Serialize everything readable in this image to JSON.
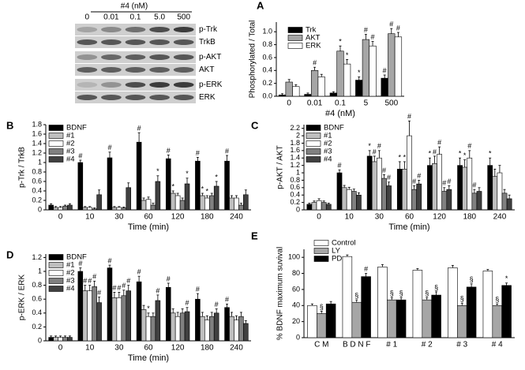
{
  "blot": {
    "title": "#4 (nM)",
    "lanes": [
      "0",
      "0.01",
      "0.1",
      "5.0",
      "500"
    ],
    "rows": [
      "p-Trk",
      "TrkB",
      "p-AKT",
      "AKT",
      "p-ERK",
      "ERK"
    ]
  },
  "chart_data": [
    {
      "type": "bar",
      "panel": "A",
      "x_label": "#4 (nM)",
      "y_label": "Phosphorylated / Total",
      "categories": [
        "0",
        "0.01",
        "0.1",
        "5",
        "500"
      ],
      "ylim": [
        0,
        1.15
      ],
      "yticks": [
        {
          "value": 0,
          "label": "0.0"
        },
        0.2,
        0.4,
        0.6,
        0.8,
        {
          "value": 1,
          "label": "1.0"
        }
      ],
      "legend": "top-left",
      "series": [
        {
          "name": "Trk",
          "color": "#000000",
          "values": [
            0.02,
            0.03,
            0.05,
            0.25,
            0.28
          ],
          "errors": [
            0.02,
            0.02,
            0.02,
            0.05,
            0.05
          ],
          "markers": [
            null,
            null,
            null,
            "*",
            "#"
          ]
        },
        {
          "name": "AKT",
          "color": "#a6a6a6",
          "values": [
            0.22,
            0.4,
            0.7,
            0.88,
            0.97
          ],
          "errors": [
            0.04,
            0.05,
            0.08,
            0.08,
            0.08
          ],
          "markers": [
            null,
            "#",
            "*",
            "#",
            "#"
          ]
        },
        {
          "name": "ERK",
          "color": "#ffffff",
          "values": [
            0.15,
            0.3,
            0.5,
            0.78,
            0.92
          ],
          "errors": [
            0.03,
            0.04,
            0.07,
            0.07,
            0.07
          ],
          "markers": [
            null,
            null,
            "*",
            "#",
            "#"
          ]
        }
      ]
    },
    {
      "type": "bar",
      "panel": "B",
      "x_label": "Time (min)",
      "y_label": "p-Trk / TrkB",
      "categories": [
        "0",
        "10",
        "30",
        "60",
        "120",
        "180",
        "240"
      ],
      "ylim": [
        0,
        1.8
      ],
      "yticks": [
        0,
        0.2,
        0.4,
        0.6,
        0.8,
        1,
        1.2,
        1.4,
        1.6,
        1.8
      ],
      "legend": "top-left",
      "series": [
        {
          "name": "BDNF",
          "color": "#000000",
          "values": [
            0.1,
            1.0,
            1.1,
            1.43,
            1.08,
            1.03,
            1.03
          ],
          "errors": [
            0.03,
            0.05,
            0.12,
            0.2,
            0.08,
            0.08,
            0.12
          ],
          "markers": [
            null,
            "#",
            "#",
            "#",
            "#",
            "#",
            "#"
          ]
        },
        {
          "name": "#1",
          "color": "#bfbfbf",
          "values": [
            0.05,
            0.05,
            0.05,
            0.2,
            0.35,
            0.3,
            0.25
          ],
          "errors": [
            0.02,
            0.02,
            0.02,
            0.05,
            0.05,
            0.05,
            0.05
          ],
          "markers": [
            null,
            null,
            null,
            null,
            "*",
            "*",
            null
          ]
        },
        {
          "name": "#2",
          "color": "#ffffff",
          "values": [
            0.05,
            0.05,
            0.05,
            0.22,
            0.3,
            0.25,
            0.25
          ],
          "errors": [
            0.02,
            0.02,
            0.02,
            0.05,
            0.05,
            0.05,
            0.05
          ],
          "markers": [
            null,
            null,
            null,
            null,
            null,
            "*",
            null
          ]
        },
        {
          "name": "#3",
          "color": "#808080",
          "values": [
            0.08,
            0.02,
            0.04,
            0.1,
            0.2,
            0.3,
            0.1
          ],
          "errors": [
            0.02,
            0.02,
            0.02,
            0.04,
            0.05,
            0.05,
            0.04
          ],
          "markers": [
            null,
            null,
            null,
            null,
            null,
            null,
            null
          ]
        },
        {
          "name": "#4",
          "color": "#404040",
          "values": [
            0.1,
            0.32,
            0.47,
            0.6,
            0.55,
            0.5,
            0.32
          ],
          "errors": [
            0.03,
            0.1,
            0.1,
            0.12,
            0.12,
            0.1,
            0.1
          ],
          "markers": [
            null,
            null,
            null,
            "*",
            "*",
            "*",
            null
          ]
        }
      ]
    },
    {
      "type": "bar",
      "panel": "C",
      "x_label": "Time (min)",
      "y_label": "p-AKT / AKT",
      "categories": [
        "0",
        "10",
        "30",
        "60",
        "120",
        "180",
        "240"
      ],
      "ylim": [
        0,
        2.3
      ],
      "yticks": [
        0,
        0.2,
        0.4,
        0.6,
        0.8,
        1,
        1.2,
        1.4,
        1.6,
        1.8,
        2,
        2.2
      ],
      "legend": "top-left",
      "series": [
        {
          "name": "BDNF",
          "color": "#000000",
          "values": [
            0.15,
            1.0,
            1.45,
            1.1,
            1.2,
            1.2,
            1.2
          ],
          "errors": [
            0.03,
            0.08,
            0.15,
            0.2,
            0.2,
            0.2,
            0.2
          ],
          "markers": [
            null,
            "#",
            "*",
            "*",
            "*",
            "*",
            "*"
          ]
        },
        {
          "name": "#1",
          "color": "#bfbfbf",
          "values": [
            0.2,
            0.6,
            1.3,
            1.1,
            1.25,
            1.15,
            0.9
          ],
          "errors": [
            0.04,
            0.06,
            0.15,
            0.2,
            0.2,
            0.2,
            0.2
          ],
          "markers": [
            null,
            null,
            "#",
            "*",
            "#",
            "*",
            null
          ]
        },
        {
          "name": "#2",
          "color": "#ffffff",
          "values": [
            0.25,
            0.55,
            1.4,
            2.0,
            1.5,
            1.4,
            1.0
          ],
          "errors": [
            0.05,
            0.06,
            0.2,
            0.4,
            0.2,
            0.2,
            0.2
          ],
          "markers": [
            null,
            null,
            "#",
            "#",
            "#",
            "#",
            null
          ]
        },
        {
          "name": "#3",
          "color": "#808080",
          "values": [
            0.2,
            0.5,
            0.85,
            0.55,
            0.5,
            0.45,
            0.45
          ],
          "errors": [
            0.04,
            0.06,
            0.1,
            0.1,
            0.1,
            0.1,
            0.1
          ],
          "markers": [
            null,
            null,
            "#",
            "#",
            "#",
            "#",
            null
          ]
        },
        {
          "name": "#4",
          "color": "#404040",
          "values": [
            0.15,
            0.4,
            0.65,
            0.7,
            0.55,
            0.5,
            0.3
          ],
          "errors": [
            0.03,
            0.06,
            0.1,
            0.1,
            0.1,
            0.1,
            0.1
          ],
          "markers": [
            null,
            null,
            "#",
            "#",
            "#",
            null,
            null
          ]
        }
      ]
    },
    {
      "type": "bar",
      "panel": "D",
      "x_label": "Time (min)",
      "y_label": "p-ERK / ERK",
      "categories": [
        "0",
        "10",
        "30",
        "60",
        "120",
        "180",
        "240"
      ],
      "ylim": [
        0,
        1.25
      ],
      "yticks": [
        0,
        0.2,
        0.4,
        0.6,
        0.8,
        1,
        1.2
      ],
      "legend": "top-left",
      "series": [
        {
          "name": "BDNF",
          "color": "#000000",
          "values": [
            0.05,
            1.0,
            1.05,
            0.85,
            0.77,
            0.6,
            0.48
          ],
          "errors": [
            0.02,
            0.05,
            0.04,
            0.08,
            0.06,
            0.08,
            0.05
          ],
          "markers": [
            null,
            "#",
            "#",
            "#",
            "#",
            "#",
            "#"
          ]
        },
        {
          "name": "#1",
          "color": "#bfbfbf",
          "values": [
            0.05,
            0.72,
            0.62,
            0.45,
            0.4,
            0.35,
            0.35
          ],
          "errors": [
            0.02,
            0.08,
            0.08,
            0.06,
            0.06,
            0.06,
            0.06
          ],
          "markers": [
            null,
            "#",
            "#",
            null,
            null,
            null,
            null
          ]
        },
        {
          "name": "#2",
          "color": "#ffffff",
          "values": [
            0.05,
            0.72,
            0.62,
            0.35,
            0.35,
            0.3,
            0.3
          ],
          "errors": [
            0.02,
            0.08,
            0.08,
            0.05,
            0.06,
            0.06,
            0.06
          ],
          "markers": [
            null,
            "#",
            "#",
            "*",
            null,
            null,
            null
          ]
        },
        {
          "name": "#3",
          "color": "#808080",
          "values": [
            0.05,
            0.78,
            0.65,
            0.35,
            0.4,
            0.35,
            0.35
          ],
          "errors": [
            0.02,
            0.08,
            0.08,
            0.05,
            0.06,
            0.06,
            0.06
          ],
          "markers": [
            null,
            "#",
            "#",
            null,
            null,
            null,
            null
          ]
        },
        {
          "name": "#4",
          "color": "#404040",
          "values": [
            0.05,
            0.55,
            0.72,
            0.58,
            0.42,
            0.4,
            0.25
          ],
          "errors": [
            0.02,
            0.08,
            0.08,
            0.08,
            0.06,
            0.06,
            0.04
          ],
          "markers": [
            null,
            "#",
            "#",
            "#",
            "#",
            "#",
            null
          ]
        }
      ]
    },
    {
      "type": "bar",
      "panel": "E",
      "y_label": "% BDNF maximum suvival",
      "categories": [
        "C M",
        "B D N F",
        "# 1",
        "# 2",
        "# 3",
        "# 4"
      ],
      "ylim": [
        0,
        110
      ],
      "yticks": [
        0,
        20,
        40,
        60,
        80,
        100
      ],
      "legend": "above",
      "series": [
        {
          "name": "Control",
          "color": "#ffffff",
          "values": [
            40,
            101,
            88,
            84,
            87,
            83
          ],
          "errors": [
            2,
            2,
            3,
            2,
            3,
            2
          ],
          "markers": [
            null,
            null,
            null,
            null,
            null,
            null
          ]
        },
        {
          "name": "LY",
          "color": "#a6a6a6",
          "values": [
            30,
            44,
            47,
            47,
            40,
            40
          ],
          "errors": [
            3,
            3,
            3,
            3,
            3,
            2
          ],
          "markers": [
            "§",
            "§",
            "§",
            "§",
            "§",
            "§"
          ]
        },
        {
          "name": "PD",
          "color": "#000000",
          "values": [
            42,
            76,
            47,
            53,
            63,
            65
          ],
          "errors": [
            3,
            4,
            3,
            4,
            4,
            3
          ],
          "markers": [
            null,
            "#",
            "§",
            "§",
            "§",
            "*"
          ]
        }
      ]
    }
  ]
}
